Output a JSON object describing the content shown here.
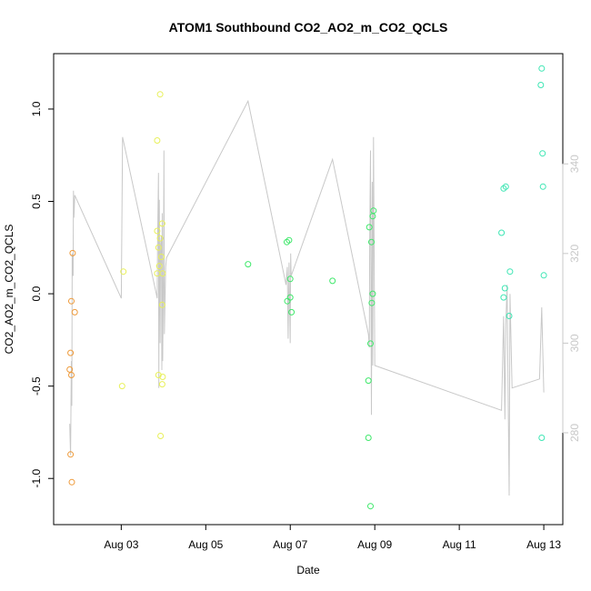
{
  "chart_data": {
    "type": "scatter",
    "title": "ATOM1 Southbound CO2_AO2_m_CO2_QCLS",
    "xlabel": "Date",
    "ylabel": "CO2_AO2_m_CO2_QCLS",
    "x_ticks": [
      {
        "day": 3,
        "label": "Aug 03"
      },
      {
        "day": 5,
        "label": "Aug 05"
      },
      {
        "day": 7,
        "label": "Aug 07"
      },
      {
        "day": 9,
        "label": "Aug 09"
      },
      {
        "day": 11,
        "label": "Aug 11"
      },
      {
        "day": 13,
        "label": "Aug 13"
      }
    ],
    "xlim": [
      1.4,
      13.45
    ],
    "ylim": [
      -1.25,
      1.3
    ],
    "y_ticks": [
      {
        "value": -1.0,
        "label": "-1.0"
      },
      {
        "value": -0.5,
        "label": "-0.5"
      },
      {
        "value": 0.0,
        "label": "0.0"
      },
      {
        "value": 0.5,
        "label": "0.5"
      },
      {
        "value": 1.0,
        "label": "1.0"
      }
    ],
    "right_axis": {
      "ylim": [
        259.5,
        364.6
      ],
      "color": "#c8c8c8",
      "ticks": [
        {
          "value": 280,
          "label": "280"
        },
        {
          "value": 300,
          "label": "300"
        },
        {
          "value": 320,
          "label": "320"
        },
        {
          "value": 340,
          "label": "340"
        }
      ]
    },
    "grid": false,
    "legend": "none",
    "point_colors": {
      "orange": "#ee9a3a",
      "yellow": "#e8f05a",
      "green": "#3ee86a",
      "cyan": "#3ee6b4"
    },
    "points": [
      {
        "x": 1.85,
        "y": 0.22,
        "c": "orange"
      },
      {
        "x": 1.82,
        "y": -0.04,
        "c": "orange"
      },
      {
        "x": 1.9,
        "y": -0.1,
        "c": "orange"
      },
      {
        "x": 1.8,
        "y": -0.32,
        "c": "orange"
      },
      {
        "x": 1.78,
        "y": -0.41,
        "c": "orange"
      },
      {
        "x": 1.82,
        "y": -0.44,
        "c": "orange"
      },
      {
        "x": 1.8,
        "y": -0.87,
        "c": "orange"
      },
      {
        "x": 1.83,
        "y": -1.02,
        "c": "orange"
      },
      {
        "x": 3.05,
        "y": 0.12,
        "c": "yellow"
      },
      {
        "x": 3.02,
        "y": -0.5,
        "c": "yellow"
      },
      {
        "x": 3.92,
        "y": 1.08,
        "c": "yellow"
      },
      {
        "x": 3.85,
        "y": 0.83,
        "c": "yellow"
      },
      {
        "x": 3.97,
        "y": 0.38,
        "c": "yellow"
      },
      {
        "x": 3.85,
        "y": 0.34,
        "c": "yellow"
      },
      {
        "x": 3.92,
        "y": 0.3,
        "c": "yellow"
      },
      {
        "x": 3.88,
        "y": 0.25,
        "c": "yellow"
      },
      {
        "x": 3.95,
        "y": 0.2,
        "c": "yellow"
      },
      {
        "x": 3.9,
        "y": 0.15,
        "c": "yellow"
      },
      {
        "x": 3.85,
        "y": 0.11,
        "c": "yellow"
      },
      {
        "x": 3.98,
        "y": 0.11,
        "c": "yellow"
      },
      {
        "x": 3.97,
        "y": -0.06,
        "c": "yellow"
      },
      {
        "x": 3.88,
        "y": -0.44,
        "c": "yellow"
      },
      {
        "x": 3.98,
        "y": -0.45,
        "c": "yellow"
      },
      {
        "x": 3.97,
        "y": -0.49,
        "c": "yellow"
      },
      {
        "x": 3.93,
        "y": -0.77,
        "c": "yellow"
      },
      {
        "x": 6.0,
        "y": 0.16,
        "c": "green"
      },
      {
        "x": 6.92,
        "y": 0.28,
        "c": "green"
      },
      {
        "x": 6.97,
        "y": 0.29,
        "c": "green"
      },
      {
        "x": 7.0,
        "y": 0.08,
        "c": "green"
      },
      {
        "x": 7.0,
        "y": -0.02,
        "c": "green"
      },
      {
        "x": 6.93,
        "y": -0.04,
        "c": "green"
      },
      {
        "x": 7.03,
        "y": -0.1,
        "c": "green"
      },
      {
        "x": 8.0,
        "y": 0.07,
        "c": "green"
      },
      {
        "x": 8.97,
        "y": 0.45,
        "c": "green"
      },
      {
        "x": 8.95,
        "y": 0.42,
        "c": "green"
      },
      {
        "x": 8.87,
        "y": 0.36,
        "c": "green"
      },
      {
        "x": 8.92,
        "y": 0.28,
        "c": "green"
      },
      {
        "x": 8.95,
        "y": 0.0,
        "c": "green"
      },
      {
        "x": 8.93,
        "y": -0.05,
        "c": "green"
      },
      {
        "x": 8.9,
        "y": -0.27,
        "c": "green"
      },
      {
        "x": 8.85,
        "y": -0.47,
        "c": "green"
      },
      {
        "x": 8.85,
        "y": -0.78,
        "c": "green"
      },
      {
        "x": 8.9,
        "y": -1.15,
        "c": "green"
      },
      {
        "x": 12.05,
        "y": 0.57,
        "c": "cyan"
      },
      {
        "x": 12.1,
        "y": 0.58,
        "c": "cyan"
      },
      {
        "x": 12.0,
        "y": 0.33,
        "c": "cyan"
      },
      {
        "x": 12.2,
        "y": 0.12,
        "c": "cyan"
      },
      {
        "x": 12.08,
        "y": 0.03,
        "c": "cyan"
      },
      {
        "x": 12.05,
        "y": -0.02,
        "c": "cyan"
      },
      {
        "x": 12.18,
        "y": -0.12,
        "c": "cyan"
      },
      {
        "x": 12.95,
        "y": 1.22,
        "c": "cyan"
      },
      {
        "x": 12.93,
        "y": 1.13,
        "c": "cyan"
      },
      {
        "x": 12.97,
        "y": 0.76,
        "c": "cyan"
      },
      {
        "x": 12.98,
        "y": 0.58,
        "c": "cyan"
      },
      {
        "x": 13.0,
        "y": 0.1,
        "c": "cyan"
      },
      {
        "x": 12.95,
        "y": -0.78,
        "c": "cyan"
      }
    ],
    "line_series": {
      "axis": "right",
      "color": "#c8c8c8",
      "points": [
        [
          1.78,
          282
        ],
        [
          1.8,
          275
        ],
        [
          1.82,
          296
        ],
        [
          1.83,
          286
        ],
        [
          1.84,
          320
        ],
        [
          1.86,
          315
        ],
        [
          1.87,
          334
        ],
        [
          1.88,
          328
        ],
        [
          1.9,
          333
        ],
        [
          3.0,
          310
        ],
        [
          3.03,
          346
        ],
        [
          3.83,
          311
        ],
        [
          3.85,
          310
        ],
        [
          3.86,
          322
        ],
        [
          3.88,
          338
        ],
        [
          3.89,
          290
        ],
        [
          3.9,
          332
        ],
        [
          3.92,
          300
        ],
        [
          3.93,
          322
        ],
        [
          3.95,
          324
        ],
        [
          3.96,
          294
        ],
        [
          3.97,
          329
        ],
        [
          3.98,
          296
        ],
        [
          4.0,
          316
        ],
        [
          4.01,
          343
        ],
        [
          4.02,
          302
        ],
        [
          4.05,
          317
        ],
        [
          4.07,
          319
        ],
        [
          6.0,
          354
        ],
        [
          6.9,
          313
        ],
        [
          6.93,
          317
        ],
        [
          6.95,
          301
        ],
        [
          6.97,
          318
        ],
        [
          7.0,
          300
        ],
        [
          7.01,
          320
        ],
        [
          7.02,
          315
        ],
        [
          8.0,
          341
        ],
        [
          8.85,
          302
        ],
        [
          8.87,
          299
        ],
        [
          8.88,
          322
        ],
        [
          8.9,
          343
        ],
        [
          8.92,
          284
        ],
        [
          8.94,
          336
        ],
        [
          8.95,
          295
        ],
        [
          8.97,
          346
        ],
        [
          8.98,
          327
        ],
        [
          9.0,
          295
        ],
        [
          12.0,
          285
        ],
        [
          12.05,
          306
        ],
        [
          12.08,
          283
        ],
        [
          12.1,
          304
        ],
        [
          12.13,
          313
        ],
        [
          12.18,
          266
        ],
        [
          12.2,
          311
        ],
        [
          12.25,
          290
        ],
        [
          12.9,
          292
        ],
        [
          12.95,
          308
        ],
        [
          13.0,
          289
        ]
      ]
    }
  }
}
